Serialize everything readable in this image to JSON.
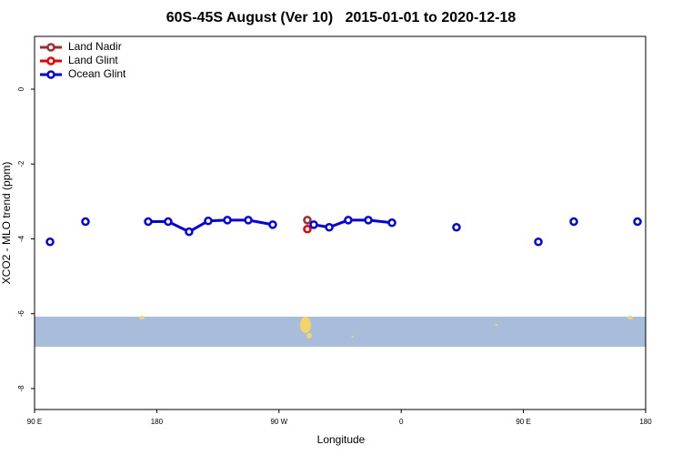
{
  "chart_data": {
    "type": "line",
    "title": "60S-45S August (Ver 10)   2015-01-01 to 2020-12-18",
    "x_label": "Longitude",
    "y_label": "XCO2 - MLO trend (ppm)",
    "xlim": [
      90,
      540
    ],
    "ylim": [
      -8.56,
      1.41
    ],
    "xticks": [
      {
        "value": 90,
        "label": "90 E"
      },
      180,
      {
        "value": 270,
        "label": "90 W"
      },
      {
        "value": 360,
        "label": "0"
      },
      {
        "value": 450,
        "label": "90 E"
      },
      {
        "value": 540,
        "label": "180"
      }
    ],
    "yticks": [
      0,
      -2,
      -4,
      -6,
      -8
    ],
    "legend": "top-left",
    "series": [
      {
        "name": "Land Nadir",
        "color": "#a52a2a",
        "x": [
          290.9
        ],
        "values": [
          -3.5
        ]
      },
      {
        "name": "Land Glint",
        "color": "#ee0000",
        "x": [
          290.9
        ],
        "values": [
          -3.74
        ]
      },
      {
        "name": "Ocean Glint",
        "color": "#0000ee",
        "x": [
          101.4,
          null,
          127.5,
          null,
          173.7,
          188.4,
          203.8,
          217.9,
          232.0,
          247.4,
          265.4,
          null,
          295.6,
          307.0,
          321.0,
          335.8,
          353.2,
          null,
          400.7,
          null,
          461.0,
          null,
          487.1,
          null,
          534.0
        ],
        "values": [
          -4.08,
          null,
          -3.54,
          null,
          -3.54,
          -3.54,
          -3.81,
          -3.52,
          -3.5,
          -3.5,
          -3.62,
          null,
          -3.62,
          -3.69,
          -3.5,
          -3.5,
          -3.57,
          null,
          -3.69,
          null,
          -4.08,
          null,
          -3.54,
          null,
          -3.54
        ]
      }
    ]
  }
}
